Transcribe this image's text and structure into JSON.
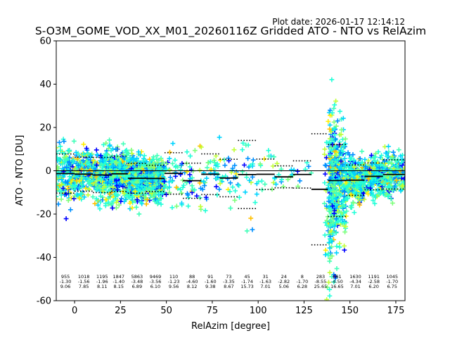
{
  "plot_date": "Plot date: 2026-01-17 12:14:12",
  "chart_data": {
    "type": "scatter",
    "title": "S-O3M_GOME_VOD_XX_M01_20260116Z Gridded ATO - NTO vs RelAzim",
    "xlabel": "RelAzim [degree]",
    "ylabel": "ATO - NTO [DU]",
    "xlim": [
      -10,
      180
    ],
    "ylim": [
      -60,
      60
    ],
    "xticks": [
      0,
      25,
      50,
      75,
      100,
      125,
      150,
      175
    ],
    "yticks": [
      -60,
      -40,
      -20,
      0,
      20,
      40,
      60
    ],
    "grid": false,
    "zero_line": 0,
    "marker": "plus",
    "colors": [
      "#0000ff",
      "#0090ff",
      "#00d4ff",
      "#22ffd8",
      "#40ffb8",
      "#7dff7a",
      "#c0ff36",
      "#ffee00",
      "#ffc000"
    ],
    "bins": [
      {
        "x": -5,
        "n": "955",
        "mean": "-1.30",
        "std": "9.06"
      },
      {
        "x": 5,
        "n": "1018",
        "mean": "-1.56",
        "std": "7.85"
      },
      {
        "x": 15,
        "n": "1195",
        "mean": "-1.96",
        "std": "8.11"
      },
      {
        "x": 24,
        "n": "1847",
        "mean": "-1.40",
        "std": "8.15"
      },
      {
        "x": 34,
        "n": "5863",
        "mean": "-3.48",
        "std": "6.89"
      },
      {
        "x": 44,
        "n": "9469",
        "mean": "-3.56",
        "std": "6.10"
      },
      {
        "x": 54,
        "n": "110",
        "mean": "-1.23",
        "std": "9.56"
      },
      {
        "x": 64,
        "n": "88",
        "mean": "-4.60",
        "std": "8.12"
      },
      {
        "x": 74,
        "n": "91",
        "mean": "-1.60",
        "std": "9.38"
      },
      {
        "x": 84,
        "n": "73",
        "mean": "-3.35",
        "std": "8.67"
      },
      {
        "x": 94,
        "n": "45",
        "mean": "-1.74",
        "std": "15.73"
      },
      {
        "x": 104,
        "n": "31",
        "mean": "-1.63",
        "std": "7.01"
      },
      {
        "x": 114,
        "n": "24",
        "mean": "-2.82",
        "std": "5.06"
      },
      {
        "x": 124,
        "n": "8",
        "mean": "-1.70",
        "std": "6.28"
      },
      {
        "x": 134,
        "n": "283",
        "mean": "-8.55",
        "std": "25.65"
      },
      {
        "x": 143,
        "n": "861",
        "mean": "-4.50",
        "std": "16.65"
      },
      {
        "x": 153,
        "n": "1630",
        "mean": "-4.34",
        "std": "7.01"
      },
      {
        "x": 163,
        "n": "1191",
        "mean": "-2.58",
        "std": "6.20"
      },
      {
        "x": 173,
        "n": "1045",
        "mean": "-1.70",
        "std": "6.75"
      }
    ]
  }
}
